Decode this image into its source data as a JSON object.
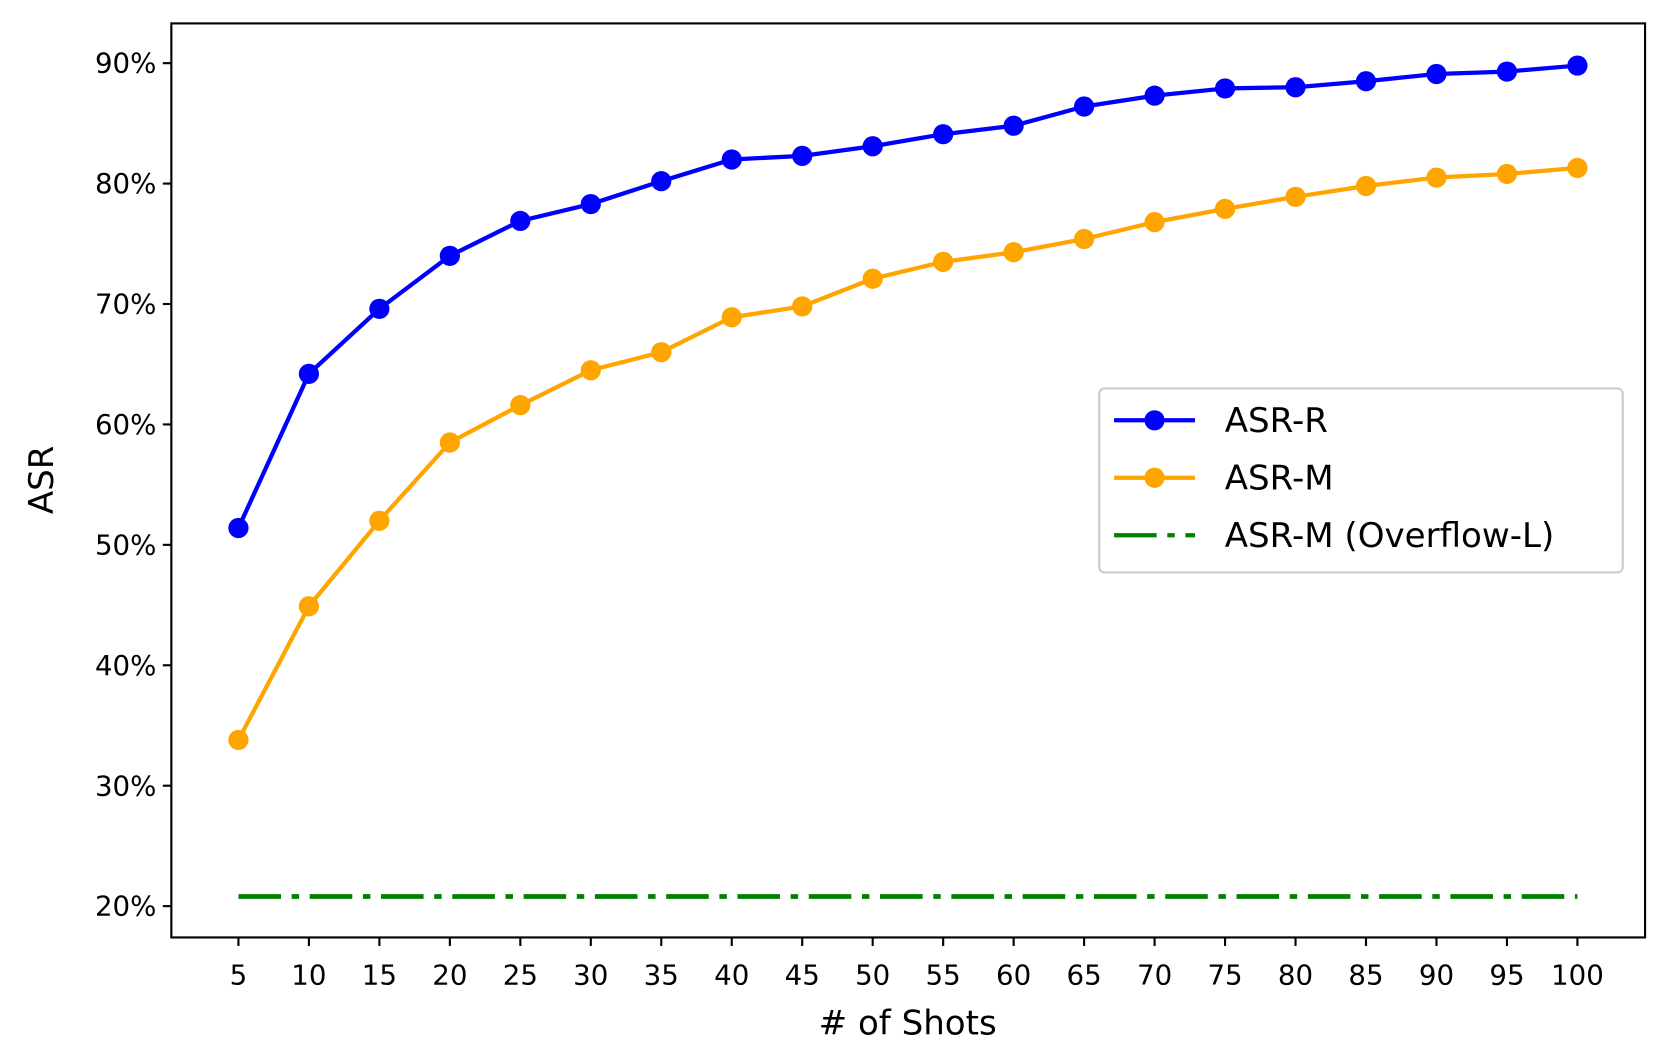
{
  "chart_data": {
    "type": "line",
    "title": "",
    "xlabel": "# of Shots",
    "ylabel": "ASR",
    "x": [
      5,
      10,
      15,
      20,
      25,
      30,
      35,
      40,
      45,
      50,
      55,
      60,
      65,
      70,
      75,
      80,
      85,
      90,
      95,
      100
    ],
    "x_tick_labels": [
      "5",
      "10",
      "15",
      "20",
      "25",
      "30",
      "35",
      "40",
      "45",
      "50",
      "55",
      "60",
      "65",
      "70",
      "75",
      "80",
      "85",
      "90",
      "95",
      "100"
    ],
    "y_ticks": [
      20,
      30,
      40,
      50,
      60,
      70,
      80,
      90
    ],
    "y_tick_labels": [
      "20%",
      "30%",
      "40%",
      "50%",
      "60%",
      "70%",
      "80%",
      "90%"
    ],
    "xlim": [
      0.24,
      104.8
    ],
    "ylim": [
      17.4,
      93.3
    ],
    "grid": false,
    "legend_placement": "center-right",
    "series": [
      {
        "name": "ASR-R",
        "color": "#0000ff",
        "style": "solid-marker",
        "values": [
          51.4,
          64.2,
          69.6,
          74.0,
          76.9,
          78.3,
          80.2,
          82.0,
          82.3,
          83.1,
          84.1,
          84.8,
          86.4,
          87.3,
          87.9,
          88.0,
          88.5,
          89.1,
          89.3,
          89.8
        ]
      },
      {
        "name": "ASR-M",
        "color": "#ffa500",
        "style": "solid-marker",
        "values": [
          33.8,
          44.9,
          52.0,
          58.5,
          61.6,
          64.5,
          66.0,
          68.9,
          69.8,
          72.1,
          73.5,
          74.3,
          75.4,
          76.8,
          77.9,
          78.9,
          79.8,
          80.5,
          80.8,
          81.3
        ]
      },
      {
        "name": "ASR-M (Overflow-L)",
        "color": "#008000",
        "style": "dashdot",
        "values": [
          20.8,
          20.8,
          20.8,
          20.8,
          20.8,
          20.8,
          20.8,
          20.8,
          20.8,
          20.8,
          20.8,
          20.8,
          20.8,
          20.8,
          20.8,
          20.8,
          20.8,
          20.8,
          20.8,
          20.8
        ]
      }
    ]
  }
}
